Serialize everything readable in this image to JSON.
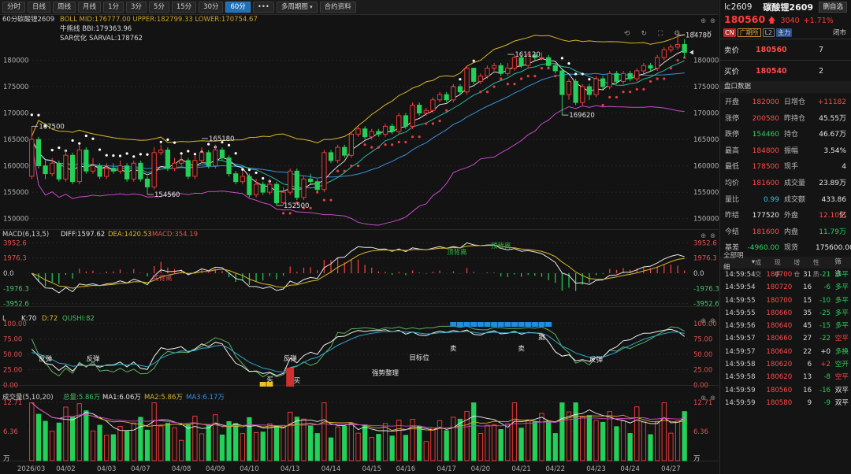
{
  "toolbar": {
    "buttons": [
      "分时",
      "日线",
      "周线",
      "月线",
      "1分",
      "3分",
      "5分",
      "15分",
      "30分",
      "60分",
      "•••",
      "多周期图",
      "合约资料"
    ],
    "active": "60分",
    "dropdown": "多周期图"
  },
  "window_icons": [
    "restore-icon",
    "grid-icon",
    "single-pane-icon",
    "more-icon",
    "minimize-icon",
    "maximize-icon",
    "close-icon"
  ],
  "chart_controls": [
    "restore-default-icon",
    "refresh-icon",
    "fullscreen-icon",
    "settings-icon",
    "pin-icon",
    "close-pane-icon"
  ],
  "main_panel": {
    "label_period": "60分",
    "label_symbol": "碳酸锂2609",
    "ind1": "BOLL MID:176777.00  UPPER:182799.33  LOWER:170754.67",
    "ind2": "牛熊线 BBI:179363.96",
    "ind3": "SAR优化 SARVAL:178762",
    "hi_label": "184780",
    "labels": [
      "167500",
      "154560",
      "152500",
      "165180",
      "161120",
      "169620"
    ]
  },
  "macd_panel": {
    "title": "MACD(6,13,5)",
    "diff": "DIFF:1597.62",
    "dea": "DEA:1420.53",
    "macd": "MACD:354.19",
    "axis": [
      "3952.6",
      "1976.3",
      "0.0",
      "-1976.3",
      "-3952.6"
    ],
    "annotations": [
      "底背离",
      "顶背离",
      "顶背离"
    ]
  },
  "kd_panel": {
    "title": "L",
    "k": "K:70",
    "d": "D:72",
    "qushi": "QUSHI:82",
    "axis": [
      "100.00",
      "75.00",
      "50.00",
      "25.00",
      "0.00"
    ],
    "annotations": [
      "反弹",
      "反弹",
      "反弹",
      "买",
      "买",
      "强势整理",
      "目标位",
      "卖",
      "卖",
      "跑",
      "反弹"
    ]
  },
  "vol_panel": {
    "title": "成交量(5,10,20)",
    "total": "总量:5.86万",
    "ma1": "MA1:6.06万",
    "ma2": "MA2:5.86万",
    "ma3": "MA3:6.17万",
    "axis": [
      "12.71",
      "6.36",
      "万"
    ]
  },
  "x_axis": [
    "2026/03",
    "04/02",
    "04/03",
    "04/07",
    "04/08",
    "04/09",
    "04/10",
    "04/13",
    "04/14",
    "04/15",
    "04/16",
    "04/17",
    "04/20",
    "04/21",
    "04/22",
    "04/23",
    "04/24",
    "04/27"
  ],
  "main_axis": [
    "180000",
    "175000",
    "170000",
    "165000",
    "160000",
    "155000",
    "150000"
  ],
  "quote": {
    "code": "lc2609",
    "name": "碳酸锂2609",
    "self_select": "删自选",
    "price": "180560",
    "change": "3040",
    "change_pct": "+1.71%",
    "tags": [
      "CN",
      "广期所",
      "L2",
      "主力"
    ],
    "status": "闭市",
    "ask_label": "卖价",
    "ask_price": "180560",
    "ask_vol": "7",
    "bid_label": "买价",
    "bid_price": "180540",
    "bid_vol": "2",
    "section_title": "盘口数据",
    "stats": [
      [
        "开盘",
        "182000",
        "r",
        "日增仓",
        "+11182",
        "r"
      ],
      [
        "涨停",
        "200580",
        "r",
        "昨持仓",
        "45.55万",
        "w"
      ],
      [
        "跌停",
        "154460",
        "g",
        "持仓",
        "46.67万",
        "w"
      ],
      [
        "最高",
        "184800",
        "r",
        "振幅",
        "3.54%",
        "w"
      ],
      [
        "最低",
        "178500",
        "r",
        "现手",
        "4",
        "w"
      ],
      [
        "均价",
        "181600",
        "r",
        "成交量",
        "23.89万",
        "w"
      ],
      [
        "量比",
        "0.99",
        "c",
        "成交额",
        "433.86亿",
        "w"
      ],
      [
        "昨结",
        "177520",
        "w",
        "外盘",
        "12.10万",
        "r"
      ],
      [
        "今结",
        "181600",
        "r",
        "内盘",
        "11.79万",
        "g"
      ],
      [
        "基差",
        "-4960.00",
        "g",
        "现货",
        "175600.00",
        "w"
      ]
    ],
    "ticks_title": "全部明细",
    "ticks_cols": [
      "成交",
      "现手",
      "增仓",
      "性质"
    ],
    "ticks_filter": "筛选",
    "ticks": [
      [
        "14:59:54",
        "180700",
        "r",
        "31",
        "-21",
        "g",
        "多平",
        "g"
      ],
      [
        "14:59:54",
        "180720",
        "r",
        "16",
        "-6",
        "g",
        "多平",
        "g"
      ],
      [
        "14:59:55",
        "180700",
        "r",
        "15",
        "-10",
        "g",
        "多平",
        "g"
      ],
      [
        "14:59:55",
        "180660",
        "r",
        "35",
        "-25",
        "g",
        "多平",
        "g"
      ],
      [
        "14:59:56",
        "180640",
        "r",
        "45",
        "-15",
        "g",
        "多平",
        "g"
      ],
      [
        "14:59:57",
        "180660",
        "r",
        "27",
        "-22",
        "g",
        "空平",
        "r"
      ],
      [
        "14:59:57",
        "180640",
        "r",
        "22",
        "+0",
        "w",
        "多换",
        "g"
      ],
      [
        "14:59:58",
        "180620",
        "r",
        "6",
        "+2",
        "r",
        "空开",
        "g"
      ],
      [
        "14:59:58",
        "180620",
        "r",
        "13",
        "-8",
        "g",
        "空平",
        "r"
      ],
      [
        "14:59:59",
        "180560",
        "r",
        "16",
        "-16",
        "g",
        "双平",
        "w"
      ],
      [
        "14:59:59",
        "180580",
        "r",
        "9",
        "-9",
        "g",
        "双平",
        "w"
      ]
    ]
  },
  "chart_data": {
    "type": "candlestick",
    "series_main": {
      "open": [
        158000,
        165000,
        160000,
        158500,
        160500,
        157500,
        162000,
        157000,
        163000,
        159000,
        160000,
        158000,
        159500,
        159000,
        160000,
        157500,
        160500,
        157500,
        156000,
        162500,
        163000,
        159500,
        160500,
        161000,
        158000,
        161000,
        162500,
        160000,
        163000,
        161500,
        158500,
        157000,
        158000,
        154500,
        156500,
        155000,
        156500,
        153000,
        155000,
        159000,
        154000,
        157500,
        157000,
        155500,
        162500,
        161000,
        163500,
        162000,
        166000,
        167000,
        165500,
        166500,
        166000,
        167500,
        166500,
        169500,
        167500,
        171500,
        170000,
        170500,
        172500,
        173500,
        172500,
        175000,
        174000,
        178500,
        176000,
        177000,
        178500,
        179000,
        177500,
        178500,
        180500,
        179000,
        181000,
        180500,
        180500,
        179000,
        178000,
        173500,
        176000,
        172000,
        175000,
        173500,
        176500,
        175000,
        177500,
        176000,
        177500,
        176500,
        178000,
        179000,
        178500,
        180500,
        182000,
        182500,
        183000
      ],
      "close": [
        165000,
        160000,
        158500,
        160500,
        157500,
        162000,
        157000,
        163000,
        159000,
        160000,
        158000,
        159500,
        159000,
        160000,
        157500,
        160500,
        157500,
        156000,
        162500,
        163000,
        159500,
        160500,
        161000,
        158000,
        161000,
        162500,
        160000,
        163000,
        161500,
        158500,
        157000,
        158000,
        154500,
        156500,
        155000,
        156500,
        153000,
        155000,
        159000,
        154000,
        157500,
        157000,
        155500,
        162500,
        161000,
        163500,
        162000,
        166000,
        167000,
        165500,
        166500,
        166000,
        167500,
        166500,
        169500,
        167500,
        171500,
        170000,
        170500,
        172500,
        173500,
        172500,
        175000,
        174000,
        178500,
        176000,
        177000,
        178500,
        179000,
        177500,
        178500,
        180500,
        179000,
        181000,
        180500,
        180500,
        179000,
        178000,
        173500,
        176000,
        172000,
        175000,
        173500,
        176500,
        175000,
        177500,
        176000,
        177500,
        176500,
        178000,
        179000,
        178500,
        180500,
        182000,
        182500,
        183000,
        181500
      ],
      "high": [
        167500,
        165500,
        161000,
        161500,
        161000,
        163000,
        162500,
        164000,
        163500,
        161500,
        160500,
        160500,
        160500,
        161000,
        160500,
        161000,
        161000,
        158000,
        163500,
        164000,
        163500,
        161500,
        162000,
        161500,
        162000,
        163500,
        163000,
        164000,
        163500,
        162000,
        159000,
        159000,
        158500,
        157500,
        157000,
        157500,
        157000,
        156000,
        159500,
        159500,
        158000,
        158500,
        157500,
        163000,
        163000,
        164000,
        164000,
        166500,
        167500,
        167500,
        167000,
        167000,
        168000,
        168000,
        170000,
        170000,
        172000,
        172000,
        171000,
        173000,
        174000,
        174000,
        175500,
        175500,
        179000,
        178500,
        177500,
        179000,
        179500,
        179500,
        179500,
        181000,
        181000,
        181500,
        181500,
        181500,
        181000,
        179500,
        178500,
        176500,
        176500,
        175500,
        175500,
        177000,
        177000,
        178000,
        178000,
        178000,
        178000,
        178500,
        179500,
        179500,
        181000,
        182500,
        183000,
        184780,
        184000
      ],
      "low": [
        157500,
        159500,
        157500,
        158000,
        157000,
        157000,
        156500,
        156500,
        158500,
        158500,
        157500,
        157500,
        158500,
        158500,
        157000,
        157000,
        157000,
        154560,
        155500,
        162000,
        159000,
        159000,
        160000,
        157500,
        157500,
        160500,
        159500,
        159500,
        161000,
        158000,
        156500,
        156500,
        154000,
        154000,
        154500,
        154500,
        152500,
        152500,
        154500,
        153500,
        153500,
        156500,
        155000,
        155000,
        160500,
        160500,
        161500,
        161500,
        165500,
        165000,
        165000,
        165500,
        165500,
        166000,
        166000,
        167000,
        167000,
        169500,
        169500,
        170000,
        172000,
        172000,
        172000,
        173500,
        173500,
        175500,
        175500,
        176500,
        178000,
        177000,
        177000,
        178000,
        178500,
        178500,
        180000,
        180000,
        178500,
        177500,
        169620,
        172500,
        171500,
        171500,
        172500,
        173000,
        174500,
        174500,
        175500,
        175500,
        176000,
        176000,
        177500,
        178000,
        178000,
        180000,
        181500,
        182000,
        180500
      ]
    },
    "x_tick_labels": [
      "2026/03",
      "04/02",
      "04/03",
      "04/07",
      "04/08",
      "04/09",
      "04/10",
      "04/13",
      "04/14",
      "04/15",
      "04/16",
      "04/17",
      "04/20",
      "04/21",
      "04/22",
      "04/23",
      "04/24",
      "04/27"
    ],
    "ylim_main": [
      148000,
      186500
    ],
    "macd_ylim": [
      -4300,
      4300
    ],
    "kd_ylim": [
      0,
      100
    ],
    "vol_ylim": [
      0,
      12.71
    ]
  }
}
